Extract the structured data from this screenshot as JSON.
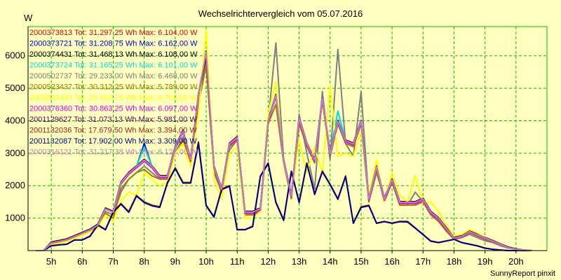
{
  "footer": "SunnyReport pinxit",
  "colors": {
    "background": "#ffffc0",
    "grid": "#00c000",
    "axis": "#000000"
  },
  "chart_data": {
    "type": "line",
    "title": "Wechselrichtervergleich vom 05.07.2016",
    "ylabel": "W",
    "xlabel": "",
    "ylim": [
      0,
      6900
    ],
    "xlim": [
      4.25,
      21.0
    ],
    "grid": true,
    "legend_position": "top-left",
    "x_ticks": [
      5,
      6,
      7,
      8,
      9,
      10,
      11,
      12,
      13,
      14,
      15,
      16,
      17,
      18,
      19,
      20
    ],
    "x_tick_labels": [
      "5h",
      "6h",
      "7h",
      "8h",
      "9h",
      "10h",
      "11h",
      "12h",
      "13h",
      "14h",
      "15h",
      "16h",
      "17h",
      "18h",
      "19h",
      "20h"
    ],
    "y_ticks": [
      1000,
      2000,
      3000,
      4000,
      5000,
      6000
    ],
    "y_tick_labels": [
      "1000",
      "2000",
      "3000",
      "4000",
      "5000",
      "6000"
    ],
    "x": [
      4.5,
      4.75,
      5,
      5.25,
      5.5,
      5.75,
      6,
      6.25,
      6.5,
      6.75,
      7,
      7.25,
      7.5,
      7.75,
      8,
      8.25,
      8.5,
      8.75,
      9,
      9.25,
      9.5,
      9.75,
      10,
      10.25,
      10.5,
      10.75,
      11,
      11.25,
      11.5,
      11.75,
      12,
      12.25,
      12.5,
      12.75,
      13,
      13.25,
      13.5,
      13.75,
      14,
      14.25,
      14.5,
      14.75,
      15,
      15.25,
      15.5,
      15.75,
      16,
      16.25,
      16.5,
      16.75,
      17,
      17.25,
      17.5,
      17.75,
      18,
      18.25,
      18.5,
      18.75,
      19,
      19.25,
      19.5,
      19.75,
      20,
      20.25,
      20.5
    ],
    "series": [
      {
        "name": "2000373813 Tot: 31.297,25 Wh Max: 6.104,00 W",
        "color": "#e00000",
        "values": [
          0,
          0,
          250,
          300,
          350,
          450,
          550,
          650,
          800,
          1300,
          1200,
          2100,
          2400,
          2600,
          2800,
          2600,
          2300,
          2300,
          3200,
          3700,
          2800,
          4800,
          6100,
          2600,
          1900,
          3300,
          3500,
          1200,
          1200,
          1300,
          4000,
          4800,
          2800,
          1700,
          4100,
          3300,
          2800,
          4700,
          3000,
          4000,
          3400,
          3300,
          4000,
          1600,
          2600,
          1600,
          2200,
          1500,
          1500,
          1500,
          1600,
          1200,
          1000,
          700,
          400,
          450,
          600,
          500,
          400,
          300,
          200,
          100,
          50,
          20,
          0
        ]
      },
      {
        "name": "2000373721 Tot: 31.208,75 Wh Max: 6.162,00 W",
        "color": "#0000c0",
        "values": [
          0,
          0,
          240,
          290,
          340,
          430,
          540,
          640,
          780,
          1280,
          1190,
          2080,
          2380,
          2580,
          3300,
          2580,
          2280,
          2280,
          3180,
          3680,
          2780,
          4780,
          6150,
          2580,
          1880,
          3280,
          3480,
          1180,
          1180,
          1280,
          3980,
          4780,
          2780,
          1680,
          4080,
          3280,
          2780,
          4680,
          2980,
          3980,
          3380,
          3280,
          3980,
          1580,
          2580,
          1580,
          2180,
          1480,
          1480,
          1480,
          1580,
          1180,
          980,
          680,
          380,
          430,
          580,
          480,
          380,
          280,
          180,
          80,
          40,
          15,
          0
        ]
      },
      {
        "name": "2000374431 Tot: 31.468,13 Wh Max: 6.108,00 W",
        "color": "#000000",
        "values": [
          0,
          0,
          260,
          310,
          360,
          460,
          560,
          660,
          810,
          1310,
          1210,
          2110,
          2410,
          2610,
          2810,
          2610,
          2310,
          2310,
          3210,
          3710,
          2810,
          4810,
          6100,
          2610,
          1910,
          3310,
          3510,
          1210,
          1210,
          1310,
          4010,
          4810,
          2810,
          1710,
          4110,
          3310,
          2810,
          4710,
          3010,
          4010,
          3410,
          3310,
          4010,
          1610,
          2610,
          1610,
          2210,
          1510,
          1510,
          1510,
          1610,
          1210,
          1010,
          710,
          410,
          460,
          610,
          510,
          410,
          310,
          210,
          110,
          55,
          20,
          0
        ]
      },
      {
        "name": "2000373724 Tot: 31.165,25 Wh Max: 6.101,00 W",
        "color": "#00e0e0",
        "values": [
          0,
          0,
          240,
          290,
          340,
          440,
          540,
          640,
          790,
          1290,
          1190,
          2090,
          2390,
          2590,
          3200,
          2590,
          2290,
          2290,
          3190,
          3690,
          2790,
          4790,
          6100,
          2590,
          1890,
          3290,
          3490,
          1190,
          1190,
          1290,
          3990,
          4790,
          2790,
          1690,
          4090,
          3290,
          2790,
          4690,
          2990,
          4300,
          3390,
          3290,
          3990,
          1590,
          2590,
          1590,
          2190,
          1490,
          1490,
          1490,
          1590,
          1190,
          990,
          690,
          390,
          440,
          590,
          490,
          390,
          290,
          190,
          90,
          45,
          15,
          0
        ]
      },
      {
        "name": "2000502737 Tot: 29.233,00 Wh Max: 6.468,00 W",
        "color": "#808080",
        "values": [
          0,
          0,
          200,
          250,
          300,
          400,
          500,
          600,
          700,
          1200,
          1100,
          1800,
          2200,
          2400,
          2600,
          2400,
          2200,
          2200,
          3000,
          3500,
          2600,
          4500,
          5900,
          2400,
          1800,
          3100,
          3400,
          1100,
          1100,
          1200,
          4000,
          6400,
          2800,
          1600,
          4200,
          3000,
          1900,
          4900,
          2800,
          6200,
          3300,
          2900,
          4900,
          1500,
          2400,
          1600,
          2100,
          1400,
          1400,
          1800,
          1500,
          1100,
          900,
          600,
          350,
          400,
          500,
          400,
          300,
          250,
          150,
          80,
          40,
          15,
          0
        ]
      },
      {
        "name": "2000523437 Tot: 30.312,25 Wh Max: 5.789,00 W",
        "color": "#a08000",
        "values": [
          0,
          0,
          220,
          270,
          320,
          420,
          520,
          620,
          750,
          1150,
          1000,
          1900,
          2200,
          2400,
          2500,
          2300,
          2200,
          2200,
          3000,
          3400,
          2700,
          4500,
          5700,
          2500,
          1800,
          3200,
          3400,
          1100,
          1100,
          1200,
          3900,
          4500,
          2700,
          1600,
          3900,
          3200,
          2700,
          4600,
          2900,
          3900,
          3300,
          3200,
          3900,
          1500,
          2500,
          1500,
          2100,
          1400,
          1400,
          1400,
          1500,
          1100,
          900,
          600,
          350,
          400,
          550,
          450,
          350,
          250,
          180,
          90,
          45,
          15,
          0
        ]
      },
      {
        "name": "2000523439 Tot: 29.563,75 Wh Max: 6.769,00 W",
        "color": "#ffff00",
        "values": [
          0,
          0,
          180,
          230,
          280,
          380,
          480,
          580,
          700,
          1100,
          900,
          1500,
          1800,
          1700,
          2400,
          2200,
          2000,
          2100,
          3000,
          3300,
          2600,
          4200,
          6800,
          2200,
          1600,
          3000,
          3200,
          1000,
          1000,
          1200,
          4200,
          5200,
          2700,
          1700,
          3400,
          2400,
          3200,
          2400,
          5100,
          2900,
          3000,
          2900,
          3700,
          1700,
          2800,
          1500,
          2400,
          1700,
          1500,
          2300,
          1500,
          1500,
          1200,
          800,
          450,
          500,
          650,
          550,
          400,
          300,
          200,
          100,
          50,
          20,
          0
        ]
      },
      {
        "name": "2000376360 Tot: 30.863,25 Wh Max: 6.097,00 W",
        "color": "#e000e0",
        "values": [
          0,
          0,
          230,
          280,
          330,
          430,
          530,
          630,
          780,
          1280,
          1180,
          2050,
          2350,
          2550,
          2750,
          2550,
          2250,
          2250,
          3150,
          3650,
          2750,
          4750,
          6050,
          2550,
          1850,
          3250,
          3450,
          1150,
          1150,
          1250,
          3950,
          4750,
          2750,
          1650,
          4050,
          3250,
          2750,
          4650,
          2950,
          3950,
          3350,
          3250,
          3950,
          1550,
          2550,
          1550,
          2150,
          1450,
          1450,
          1450,
          1550,
          1150,
          950,
          650,
          370,
          420,
          570,
          470,
          370,
          270,
          170,
          80,
          40,
          15,
          0
        ]
      },
      {
        "name": "2001129627 Tot: 31.073,13 Wh Max: 5.981,00 W",
        "color": "#600060",
        "values": [
          0,
          0,
          245,
          295,
          345,
          445,
          545,
          645,
          795,
          1295,
          1195,
          2095,
          2395,
          2595,
          2795,
          2595,
          2295,
          2295,
          3195,
          3695,
          2795,
          4795,
          5980,
          2595,
          1895,
          3295,
          3495,
          1195,
          1195,
          1295,
          3995,
          4795,
          2795,
          1695,
          4095,
          3295,
          2795,
          4695,
          2995,
          3995,
          3395,
          3295,
          3995,
          1595,
          2595,
          1595,
          2195,
          1495,
          1495,
          1495,
          1595,
          1195,
          995,
          695,
          395,
          445,
          595,
          495,
          395,
          295,
          195,
          95,
          48,
          18,
          0
        ]
      },
      {
        "name": "2001132036 Tot: 17.679,50 Wh Max: 3.394,00 W",
        "color": "#a02020",
        "values": [
          0,
          0,
          150,
          180,
          200,
          330,
          330,
          450,
          800,
          650,
          1200,
          1450,
          1200,
          1700,
          1500,
          1400,
          1350,
          2100,
          2550,
          2100,
          2100,
          3350,
          1400,
          1050,
          1900,
          2000,
          650,
          650,
          750,
          2300,
          2700,
          1500,
          950,
          2450,
          1500,
          2700,
          1750,
          2450,
          2050,
          1600,
          2300,
          850,
          1350,
          1400,
          850,
          900,
          850,
          900,
          900,
          700,
          500,
          300,
          250,
          300,
          350,
          250,
          200,
          150,
          80,
          40,
          20,
          0,
          0,
          0,
          0
        ]
      },
      {
        "name": "2001132087 Tot: 17.902,00 Wh Max: 3.309,00 W",
        "color": "#000080",
        "values": [
          0,
          0,
          145,
          175,
          195,
          325,
          325,
          440,
          780,
          640,
          1180,
          1430,
          1180,
          1680,
          1480,
          1380,
          1330,
          2080,
          2530,
          2080,
          2080,
          3300,
          1380,
          1030,
          1880,
          1980,
          640,
          640,
          740,
          2280,
          2680,
          1480,
          930,
          2430,
          1480,
          2680,
          1730,
          2430,
          2030,
          1580,
          2280,
          840,
          1330,
          1380,
          840,
          890,
          840,
          890,
          880,
          690,
          490,
          290,
          245,
          295,
          345,
          245,
          195,
          145,
          75,
          38,
          18,
          0,
          0,
          0,
          0
        ]
      },
      {
        "name": "2000316121 Tot: 31.217,38 Wh Max: 6.127,00 W",
        "color": "#c080c0",
        "values": [
          0,
          0,
          235,
          285,
          335,
          435,
          535,
          635,
          785,
          1285,
          1185,
          2085,
          2385,
          2585,
          2785,
          2585,
          2285,
          2285,
          3185,
          3685,
          2785,
          4785,
          6120,
          2585,
          1885,
          3285,
          3485,
          1185,
          1185,
          1285,
          3985,
          4785,
          2785,
          1685,
          4085,
          3285,
          2785,
          4685,
          2985,
          3985,
          3385,
          3285,
          3985,
          1585,
          2585,
          1585,
          2185,
          1485,
          1485,
          1485,
          1585,
          1185,
          985,
          685,
          385,
          435,
          585,
          485,
          385,
          285,
          185,
          85,
          42,
          16,
          0
        ]
      }
    ]
  }
}
